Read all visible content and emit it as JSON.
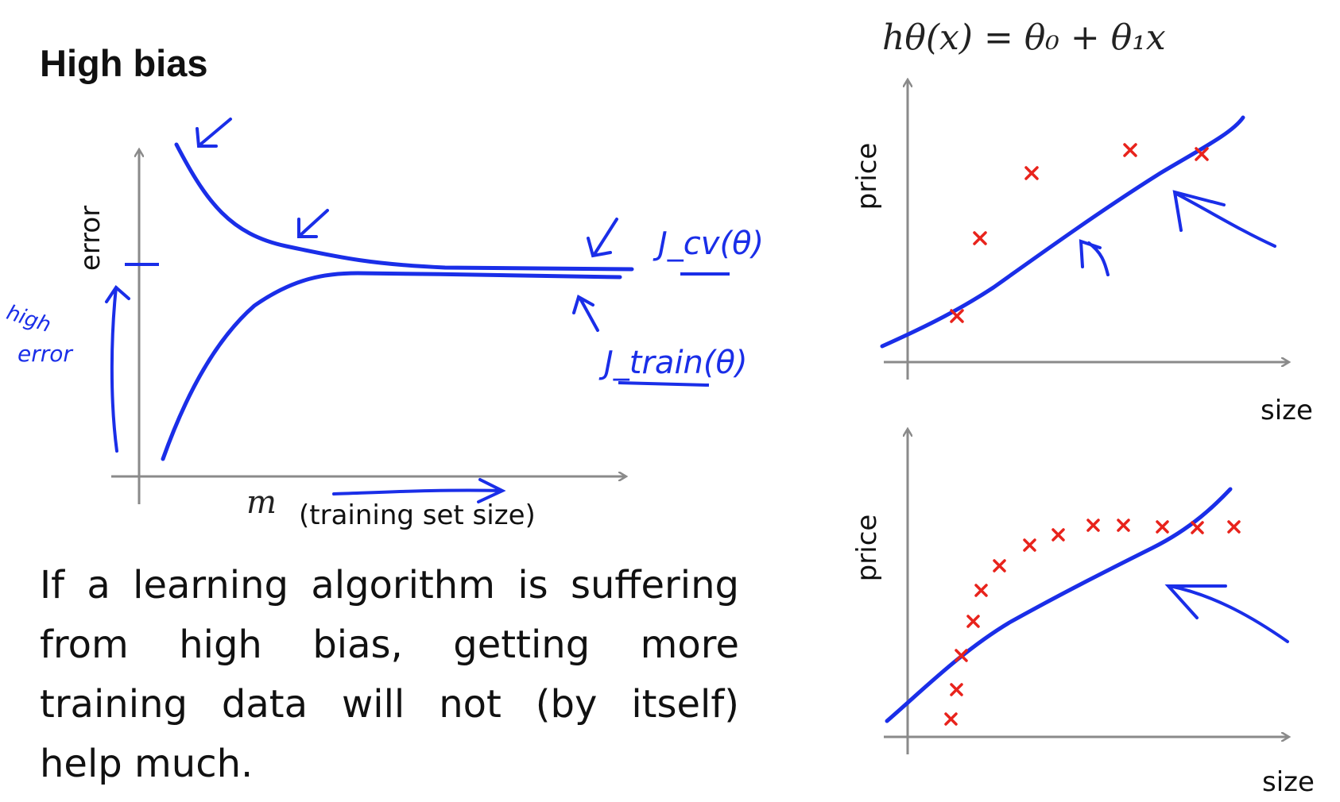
{
  "slide": {
    "title": "High bias",
    "paragraph_lines": [
      "If a learning algorithm is suffering",
      "from high bias, getting more",
      "training data will not (by itself)",
      "help much."
    ]
  },
  "learning_curve": {
    "y_label": "error",
    "x_symbol": "m",
    "x_label": "(training set size)",
    "handwritten_high_error": [
      "high",
      "error"
    ],
    "curve_labels": [
      "J_cv(θ)",
      "J_train(θ)"
    ]
  },
  "fit_top": {
    "equation": "h_θ(x) = θ_0 + θ_1 x",
    "equation_display": "hθ(x) = θ₀ + θ₁x",
    "y_label": "price",
    "x_label": "size"
  },
  "fit_bottom": {
    "y_label": "price",
    "x_label": "size"
  },
  "colors": {
    "ink": "#1a2ee8",
    "points": "#e8231c",
    "axes": "#8a8a8a",
    "text": "#111111"
  }
}
